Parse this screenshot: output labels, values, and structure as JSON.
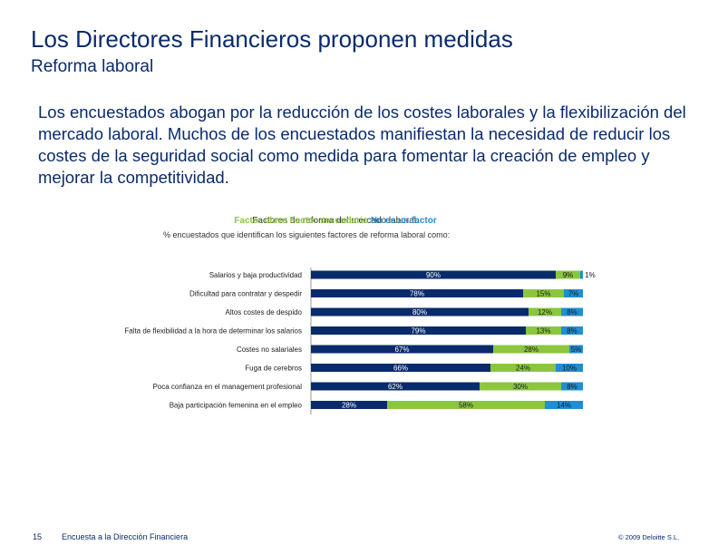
{
  "header": {
    "title": "Los Directores Financieros proponen medidas",
    "subtitle": "Reforma laboral"
  },
  "intro": "Los encuestados abogan por la reducción de los costes laborales y la flexibilización del mercado laboral. Muchos de los encuestados manifiestan la necesidad de reducir los costes de la seguridad social como medida para fomentar la creación de empleo y mejorar la competitividad.",
  "colors": {
    "dark": "#0a2b6b",
    "green": "#8cc63f",
    "blue": "#1f8ed2"
  },
  "chart_data": {
    "type": "bar",
    "orientation": "horizontal",
    "stacked": true,
    "title": "Factores de reforma del mercado laboral:",
    "legend": [
      "Factor clave",
      "Factor secundario",
      "No es un factor"
    ],
    "subtitle": "% encuestados que identifican los siguientes factores de reforma laboral como:",
    "categories": [
      "Salarios y baja productividad",
      "Dificultad para contratar y despedir",
      "Altos costes de despido",
      "Falta de flexibilidad a la hora de determinar los salarios",
      "Costes no salariales",
      "Fuga de cerebros",
      "Poca confianza en el management profesional",
      "Baja participación femenina en el empleo"
    ],
    "series": [
      {
        "name": "Factor clave",
        "values": [
          90,
          78,
          80,
          79,
          67,
          66,
          62,
          28
        ],
        "labels": [
          "90%",
          "78%",
          "80%",
          "79%",
          "67%",
          "66%",
          "62%",
          "28%"
        ]
      },
      {
        "name": "Factor secundario",
        "values": [
          9,
          15,
          12,
          13,
          28,
          24,
          30,
          58
        ],
        "labels": [
          "9%",
          "15%",
          "12%",
          "13%",
          "28%",
          "24%",
          "30%",
          "58%"
        ]
      },
      {
        "name": "No es un factor",
        "values": [
          1,
          7,
          8,
          8,
          5,
          10,
          8,
          14
        ],
        "labels": [
          "1%",
          "7%",
          "8%",
          "8%",
          "5%",
          "10%",
          "8%",
          "14%"
        ]
      }
    ],
    "xlim": [
      0,
      100
    ]
  },
  "footer": {
    "page": "15",
    "source": "Encuesta a la Dirección Financiera",
    "copyright": "© 2009 Deloitte S.L."
  }
}
